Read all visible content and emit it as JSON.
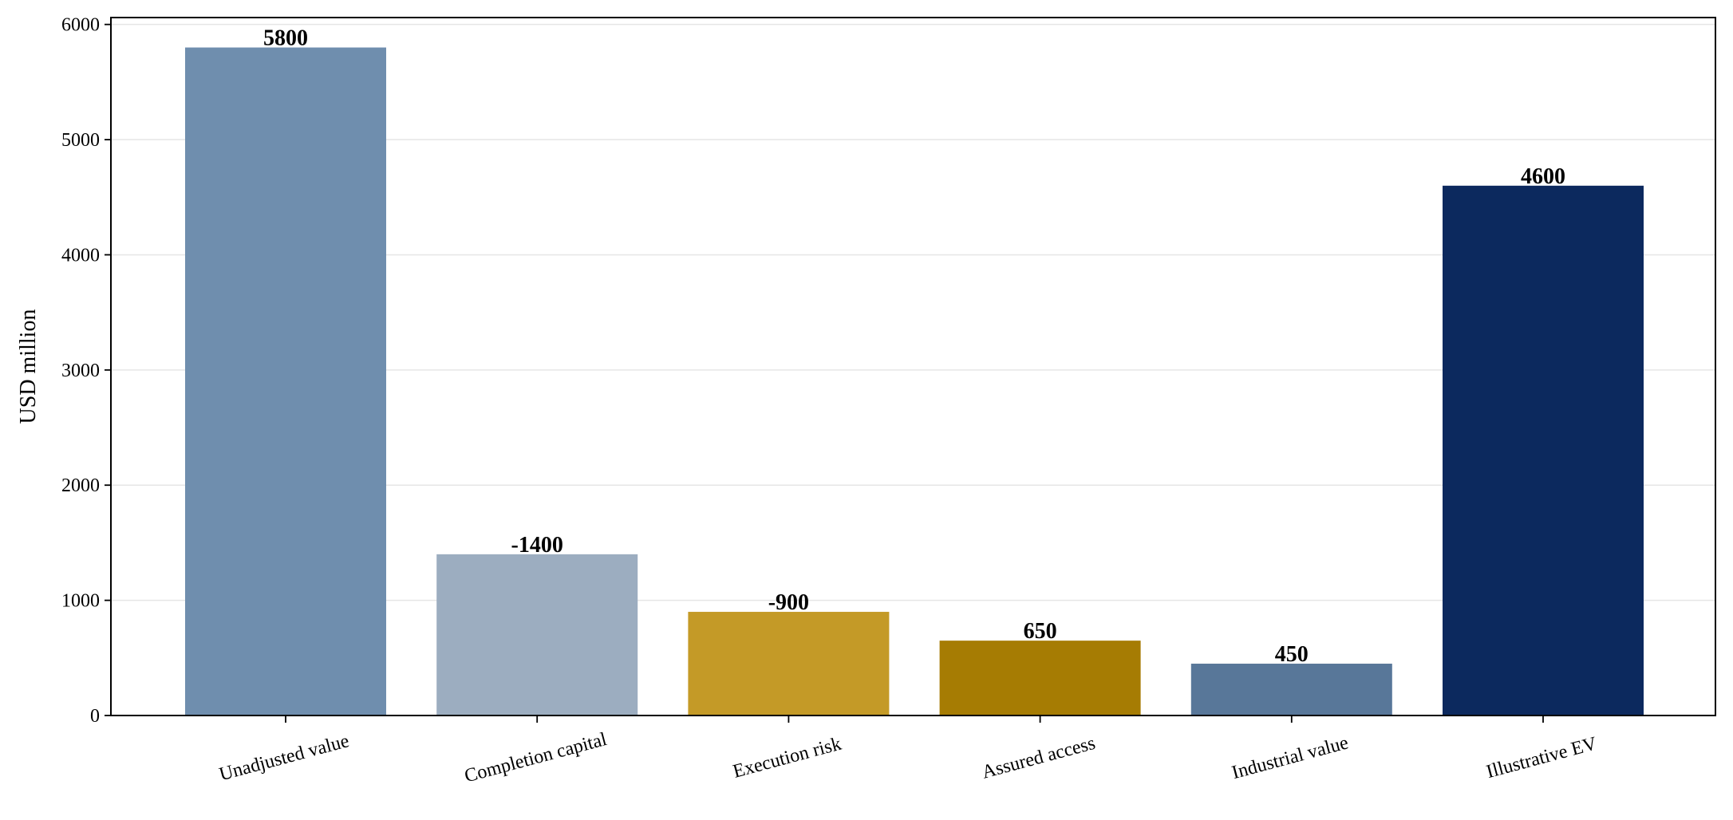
{
  "chart_data": {
    "type": "bar",
    "title": "",
    "xlabel": "",
    "ylabel": "USD million",
    "categories": [
      "Unadjusted value",
      "Completion capital",
      "Execution risk",
      "Assured access",
      "Industrial value",
      "Illustrative EV"
    ],
    "values": [
      5800,
      1400,
      900,
      650,
      450,
      4600
    ],
    "data_labels": [
      "5800",
      "-1400",
      "-900",
      "650",
      "450",
      "4600"
    ],
    "colors": [
      "#6f8eae",
      "#9cadc0",
      "#c49a27",
      "#a67c03",
      "#587799",
      "#0c295e"
    ],
    "ylim": [
      0,
      6060
    ],
    "yticks": [
      0,
      1000,
      2000,
      3000,
      4000,
      5000,
      6000
    ],
    "grid": "horizontal",
    "legend": "none"
  }
}
